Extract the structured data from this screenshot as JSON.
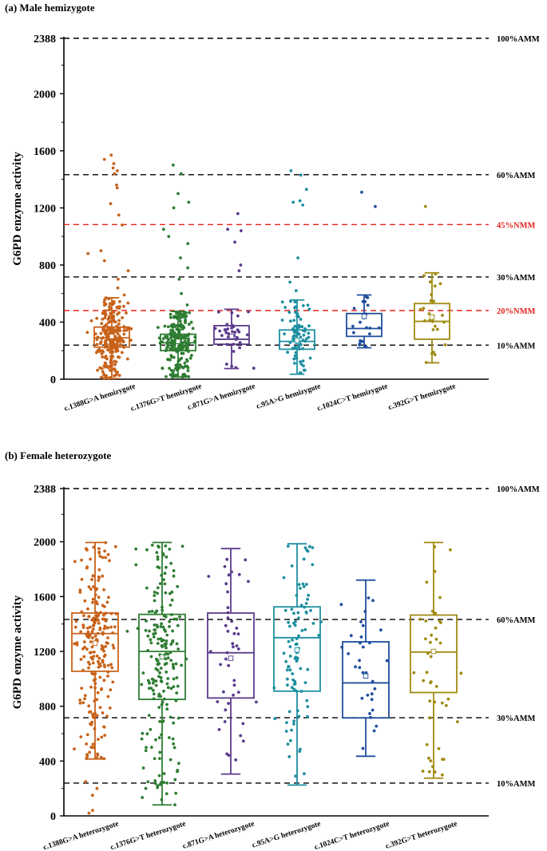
{
  "chart_data": [
    {
      "type": "box",
      "title": "(a) Male hemizygote",
      "xlabel": "",
      "ylabel": "G6PD enzyme activity",
      "ylim": [
        0,
        2388
      ],
      "yticks": [
        0,
        400,
        800,
        1200,
        1600,
        2000,
        2388
      ],
      "ytick_labels": [
        "0",
        "400",
        "800",
        "1200",
        "1600",
        "2000",
        "2388"
      ],
      "grid": false,
      "reference_lines": [
        {
          "label": "100%AMM",
          "value": 2388,
          "color": "#000000"
        },
        {
          "label": "60%AMM",
          "value": 1433,
          "color": "#000000"
        },
        {
          "label": "45%NMM",
          "value": 1083,
          "color": "#e8221b"
        },
        {
          "label": "30%AMM",
          "value": 716,
          "color": "#000000"
        },
        {
          "label": "20%NMM",
          "value": 481,
          "color": "#e8221b"
        },
        {
          "label": "10%AMM",
          "value": 239,
          "color": "#000000"
        }
      ],
      "categories": [
        "c.1388G>A hemizygote",
        "c.1376G>T hemizygote",
        "c.871G>A hemizygote",
        "c.95A>G hemizygote",
        "c.1024C>T hemizygote",
        "c.392G>T hemizygote"
      ],
      "series": [
        {
          "category": "c.1388G>A hemizygote",
          "color": "#c8621a",
          "whisker_low": 5,
          "q1": 225,
          "median": 290,
          "q3": 365,
          "whisker_high": 570,
          "mean": 300,
          "n_points": 260,
          "outliers": [
            590,
            640,
            700,
            760,
            830,
            880,
            900,
            1080,
            1150,
            1230,
            1340,
            1360,
            1440,
            1460,
            1480,
            1510,
            1540,
            1570
          ]
        },
        {
          "category": "c.1376G>T hemizygote",
          "color": "#2e7d32",
          "whisker_low": 15,
          "q1": 200,
          "median": 255,
          "q3": 315,
          "whisker_high": 475,
          "mean": 265,
          "n_points": 230,
          "outliers": [
            520,
            600,
            700,
            780,
            850,
            950,
            1000,
            1050,
            1200,
            1240,
            1300,
            1440,
            1500
          ]
        },
        {
          "category": "c.871G>A hemizygote",
          "color": "#5b3a8c",
          "whisker_low": 75,
          "q1": 245,
          "median": 280,
          "q3": 375,
          "whisker_high": 490,
          "mean": 300,
          "n_points": 36,
          "outliers": [
            760,
            800,
            960,
            1040,
            1050,
            1160
          ]
        },
        {
          "category": "c.95A>G hemizygote",
          "color": "#1d8fa0",
          "whisker_low": 35,
          "q1": 210,
          "median": 265,
          "q3": 345,
          "whisker_high": 555,
          "mean": 270,
          "n_points": 80,
          "outliers": [
            620,
            680,
            850,
            1220,
            1240,
            1250,
            1330,
            1430,
            1460
          ]
        },
        {
          "category": "c.1024C>T hemizygote",
          "color": "#1f4e9c",
          "whisker_low": 220,
          "q1": 300,
          "median": 355,
          "q3": 460,
          "whisker_high": 590,
          "mean": 440,
          "n_points": 20,
          "outliers": [
            1210,
            1310
          ]
        },
        {
          "category": "c.392G>T hemizygote",
          "color": "#a08a12",
          "whisker_low": 115,
          "q1": 280,
          "median": 405,
          "q3": 530,
          "whisker_high": 745,
          "mean": 435,
          "n_points": 26,
          "outliers": [
            1210
          ]
        }
      ]
    },
    {
      "type": "box",
      "title": "(b) Female heterozygote",
      "xlabel": "",
      "ylabel": "G6PD enzyme activity",
      "ylim": [
        0,
        2388
      ],
      "yticks": [
        0,
        400,
        800,
        1200,
        1600,
        2000,
        2388
      ],
      "ytick_labels": [
        "0",
        "400",
        "800",
        "1200",
        "1600",
        "2000",
        "2388"
      ],
      "grid": false,
      "reference_lines": [
        {
          "label": "100%AMM",
          "value": 2388,
          "color": "#000000"
        },
        {
          "label": "60%AMM",
          "value": 1433,
          "color": "#000000"
        },
        {
          "label": "30%AMM",
          "value": 716,
          "color": "#000000"
        },
        {
          "label": "10%AMM",
          "value": 239,
          "color": "#000000"
        }
      ],
      "categories": [
        "c.1388G>A heterozygote",
        "c.1376G>T heterozygote",
        "c.871G>A heterozygote",
        "c.95A>G heterozygote",
        "c.1024C>T heterozygote",
        "c.392G>T heterozygote"
      ],
      "series": [
        {
          "category": "c.1388G>A heterozygote",
          "color": "#c8621a",
          "whisker_low": 415,
          "q1": 1055,
          "median": 1330,
          "q3": 1480,
          "whisker_high": 1995,
          "mean": 1260,
          "n_points": 230,
          "outliers": [
            20,
            40,
            150,
            200,
            250
          ]
        },
        {
          "category": "c.1376G>T heterozygote",
          "color": "#2e7d32",
          "whisker_low": 80,
          "q1": 850,
          "median": 1200,
          "q3": 1470,
          "whisker_high": 1995,
          "mean": 1160,
          "n_points": 210,
          "outliers": []
        },
        {
          "category": "c.871G>A heterozygote",
          "color": "#5b3a8c",
          "whisker_low": 305,
          "q1": 860,
          "median": 1190,
          "q3": 1480,
          "whisker_high": 1950,
          "mean": 1150,
          "n_points": 45,
          "outliers": []
        },
        {
          "category": "c.95A>G heterozygote",
          "color": "#1d8fa0",
          "whisker_low": 225,
          "q1": 910,
          "median": 1300,
          "q3": 1525,
          "whisker_high": 1985,
          "mean": 1210,
          "n_points": 95,
          "outliers": []
        },
        {
          "category": "c.1024C>T heterozygote",
          "color": "#1f4e9c",
          "whisker_low": 435,
          "q1": 715,
          "median": 970,
          "q3": 1270,
          "whisker_high": 1720,
          "mean": 1020,
          "n_points": 32,
          "outliers": []
        },
        {
          "category": "c.392G>T heterozygote",
          "color": "#a08a12",
          "whisker_low": 275,
          "q1": 900,
          "median": 1195,
          "q3": 1465,
          "whisker_high": 1995,
          "mean": 1200,
          "n_points": 45,
          "outliers": []
        }
      ]
    }
  ]
}
